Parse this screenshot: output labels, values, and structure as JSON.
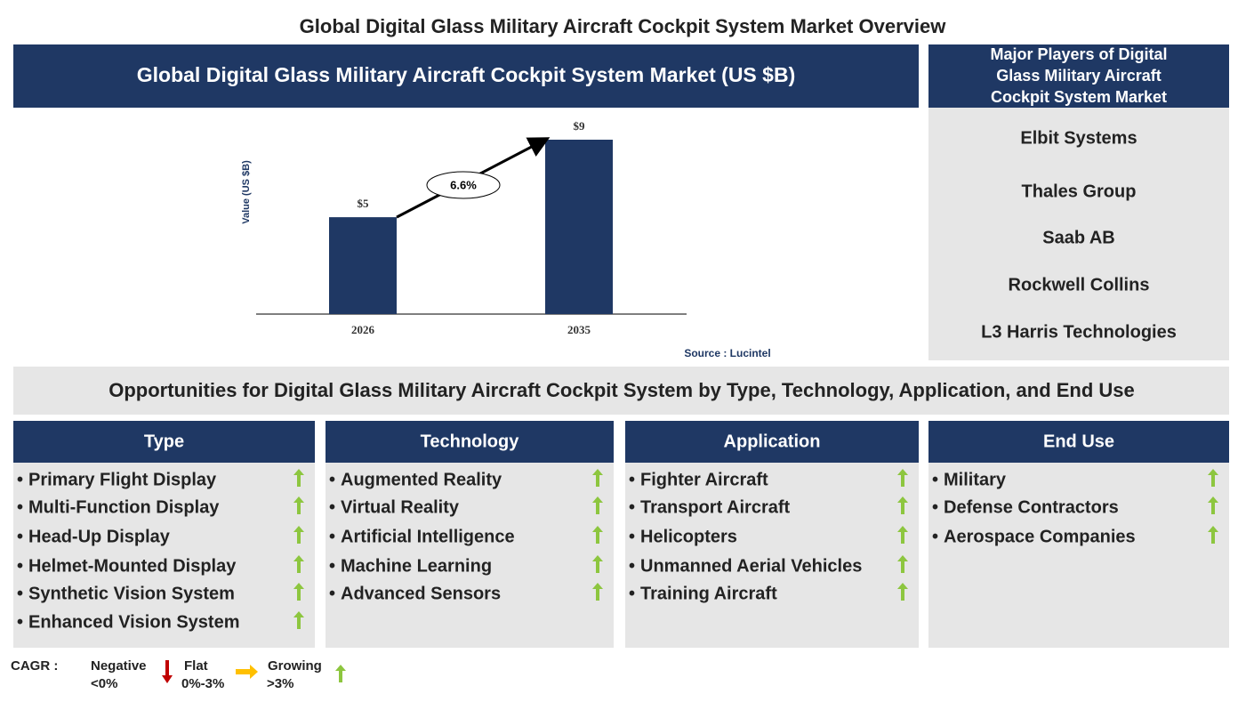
{
  "title": "Global Digital Glass Military Aircraft Cockpit System Market Overview",
  "chart_data": {
    "type": "bar",
    "title": "Global Digital Glass Military Aircraft Cockpit System Market (US $B)",
    "y_label": "Value (US $B)",
    "categories": [
      "2026",
      "2035"
    ],
    "values": [
      5,
      9
    ],
    "value_labels": [
      "$5",
      "$9"
    ],
    "color": "#1f3864",
    "annotation": "6.6%",
    "source": "Source : Lucintel"
  },
  "players": {
    "title": "Major Players of Digital Glass Military Aircraft Cockpit System Market",
    "items": [
      "Elbit Systems",
      "Thales Group",
      "Saab AB",
      "Rockwell Collins",
      "L3 Harris Technologies"
    ]
  },
  "opportunities": {
    "title": "Opportunities for Digital Glass Military Aircraft Cockpit System by Type, Technology, Application, and End Use",
    "columns": [
      {
        "title": "Type",
        "items": [
          "Primary Flight Display",
          "Multi-Function Display",
          "Head-Up Display",
          "Helmet-Mounted Display",
          "Synthetic Vision System",
          "Enhanced Vision System"
        ]
      },
      {
        "title": "Technology",
        "items": [
          "Augmented Reality",
          "Virtual Reality",
          "Artificial Intelligence",
          "Machine Learning",
          "Advanced Sensors"
        ]
      },
      {
        "title": "Application",
        "items": [
          "Fighter Aircraft",
          "Transport Aircraft",
          "Helicopters",
          "Unmanned Aerial Vehicles",
          "Training Aircraft"
        ]
      },
      {
        "title": "End Use",
        "items": [
          "Military",
          "Defense Contractors",
          "Aerospace Companies"
        ]
      }
    ]
  },
  "legend": {
    "label": "CAGR :",
    "items": [
      {
        "name": "Negative",
        "range": "<0%"
      },
      {
        "name": "Flat",
        "range": "0%-3%"
      },
      {
        "name": "Growing",
        "range": ">3%"
      }
    ]
  }
}
